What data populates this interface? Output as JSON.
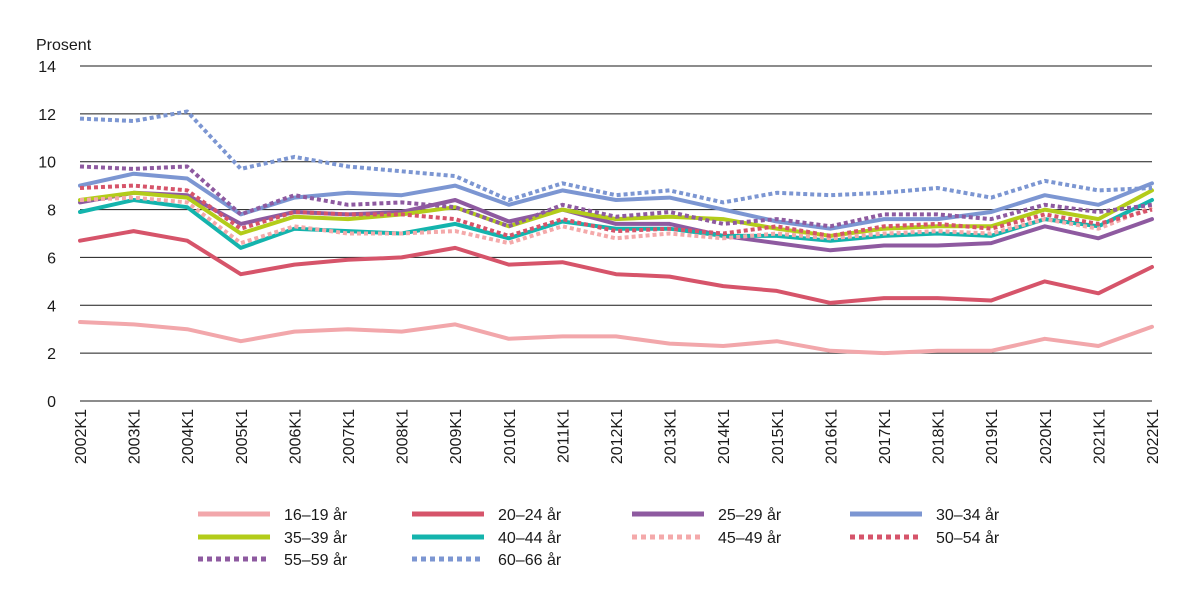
{
  "chart_data": {
    "type": "line",
    "ylabel": "Prosent",
    "ylim": [
      0,
      14
    ],
    "yticks": [
      0,
      2,
      4,
      6,
      8,
      10,
      12,
      14
    ],
    "grid": true,
    "legend_position": "bottom",
    "categories": [
      "2002K1",
      "2003K1",
      "2004K1",
      "2005K1",
      "2006K1",
      "2007K1",
      "2008K1",
      "2009K1",
      "2010K1",
      "2011K1",
      "2012K1",
      "2013K1",
      "2014K1",
      "2015K1",
      "2016K1",
      "2017K1",
      "2018K1",
      "2019K1",
      "2020K1",
      "2021K1",
      "2022K1"
    ],
    "series": [
      {
        "name": "16–19 år",
        "color": "#f2a7ab",
        "style": "solid",
        "values": [
          3.3,
          3.2,
          3.0,
          2.5,
          2.9,
          3.0,
          2.9,
          3.2,
          2.6,
          2.7,
          2.7,
          2.4,
          2.3,
          2.5,
          2.1,
          2.0,
          2.1,
          2.1,
          2.6,
          2.3,
          3.1
        ]
      },
      {
        "name": "20–24 år",
        "color": "#d6546a",
        "style": "solid",
        "values": [
          6.7,
          7.1,
          6.7,
          5.3,
          5.7,
          5.9,
          6.0,
          6.4,
          5.7,
          5.8,
          5.3,
          5.2,
          4.8,
          4.6,
          4.1,
          4.3,
          4.3,
          4.2,
          5.0,
          4.5,
          5.6
        ]
      },
      {
        "name": "25–29 år",
        "color": "#8e5aa0",
        "style": "solid",
        "values": [
          8.3,
          8.7,
          8.6,
          7.4,
          7.9,
          7.8,
          7.9,
          8.4,
          7.5,
          8.0,
          7.4,
          7.4,
          6.9,
          6.6,
          6.3,
          6.5,
          6.5,
          6.6,
          7.3,
          6.8,
          7.6
        ]
      },
      {
        "name": "30–34 år",
        "color": "#7c96d2",
        "style": "solid",
        "values": [
          9.0,
          9.5,
          9.3,
          7.8,
          8.5,
          8.7,
          8.6,
          9.0,
          8.2,
          8.8,
          8.4,
          8.5,
          8.0,
          7.5,
          7.2,
          7.6,
          7.6,
          7.9,
          8.6,
          8.2,
          9.1
        ]
      },
      {
        "name": "35–39 år",
        "color": "#b3cc1a",
        "style": "solid",
        "values": [
          8.4,
          8.7,
          8.5,
          7.0,
          7.7,
          7.6,
          7.8,
          8.1,
          7.3,
          8.0,
          7.6,
          7.7,
          7.6,
          7.2,
          6.9,
          7.2,
          7.3,
          7.3,
          8.0,
          7.6,
          8.8
        ]
      },
      {
        "name": "40–44 år",
        "color": "#14b4ad",
        "style": "solid",
        "values": [
          7.9,
          8.4,
          8.1,
          6.4,
          7.2,
          7.1,
          7.0,
          7.4,
          6.8,
          7.5,
          7.2,
          7.2,
          6.9,
          6.9,
          6.7,
          6.9,
          7.0,
          6.9,
          7.6,
          7.3,
          8.4
        ]
      },
      {
        "name": "45–49 år",
        "color": "#f4a9aa",
        "style": "dotted",
        "values": [
          8.4,
          8.5,
          8.3,
          6.6,
          7.3,
          7.0,
          7.0,
          7.1,
          6.6,
          7.3,
          6.8,
          7.0,
          6.8,
          7.0,
          6.8,
          7.0,
          7.1,
          7.0,
          7.6,
          7.2,
          8.1
        ]
      },
      {
        "name": "50–54 år",
        "color": "#d6546a",
        "style": "dotted",
        "values": [
          8.9,
          9.0,
          8.8,
          7.2,
          7.9,
          7.8,
          7.8,
          7.6,
          6.9,
          7.6,
          7.1,
          7.2,
          7.0,
          7.3,
          6.9,
          7.3,
          7.4,
          7.2,
          7.8,
          7.4,
          8.0
        ]
      },
      {
        "name": "55–59 år",
        "color": "#8e5aa0",
        "style": "dotted",
        "values": [
          9.8,
          9.7,
          9.8,
          7.8,
          8.6,
          8.2,
          8.3,
          8.1,
          7.3,
          8.2,
          7.7,
          7.9,
          7.4,
          7.6,
          7.3,
          7.8,
          7.8,
          7.6,
          8.2,
          7.9,
          8.2
        ]
      },
      {
        "name": "60–66 år",
        "color": "#7c96d2",
        "style": "dotted",
        "values": [
          11.8,
          11.7,
          12.1,
          9.7,
          10.2,
          9.8,
          9.6,
          9.4,
          8.4,
          9.1,
          8.6,
          8.8,
          8.3,
          8.7,
          8.6,
          8.7,
          8.9,
          8.5,
          9.2,
          8.8,
          8.9
        ]
      }
    ]
  }
}
